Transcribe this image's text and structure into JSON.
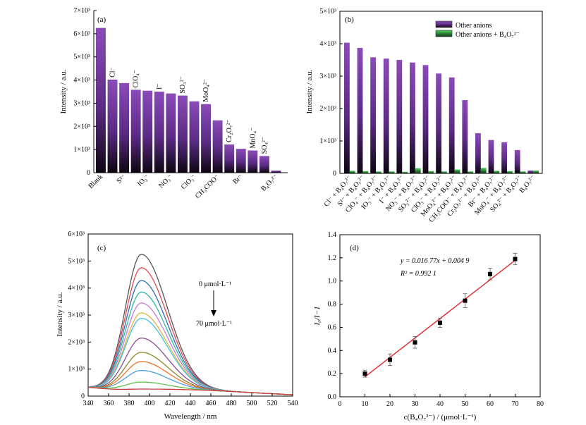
{
  "chart_data": [
    {
      "panel": "(a)",
      "type": "bar",
      "ylabel": "Intensity / a.u.",
      "ylim": [
        0,
        7000
      ],
      "yticks": [
        0,
        1000,
        2000,
        3000,
        4000,
        5000,
        6000,
        7000
      ],
      "ytick_labels": [
        "0",
        "1×10³",
        "2×10³",
        "3×10³",
        "4×10³",
        "5×10³",
        "6×10³",
        "7×10³"
      ],
      "bar_color": "#7b3fa6",
      "categories": [
        "Blank",
        "Cl⁻",
        "S²⁻",
        "ClO₄⁻",
        "IO₃⁻",
        "I⁻",
        "NO₃⁻",
        "SO₃²⁻",
        "ClO₃⁻",
        "MoO₄²⁻",
        "CH₃COO⁻",
        "Cr₂O₇²⁻",
        "Br⁻",
        "MnO₄⁻",
        "SO₄²⁻",
        "B₄O₇²⁻"
      ],
      "values": [
        6250,
        4020,
        3870,
        3580,
        3540,
        3500,
        3420,
        3330,
        3080,
        2960,
        2260,
        1220,
        1030,
        960,
        720,
        90
      ],
      "bottom_labels": [
        "Blank",
        "S²⁻",
        "IO₃⁻",
        "NO₃⁻",
        "ClO₃⁻",
        "CH₃COO⁻",
        "Br⁻",
        "B₄O₇²⁻"
      ],
      "top_labels": [
        "Cl⁻",
        "ClO₄⁻",
        "I⁻",
        "SO₃²⁻",
        "MoO₄²⁻",
        "Cr₂O₇²⁻",
        "MnO₄⁻",
        "SO₄²⁻"
      ]
    },
    {
      "panel": "(b)",
      "type": "bar",
      "ylabel": "Intensity / a.u.",
      "ylim": [
        0,
        5000
      ],
      "yticks": [
        0,
        1000,
        2000,
        3000,
        4000,
        5000
      ],
      "ytick_labels": [
        "0",
        "1×10³",
        "2×10³",
        "3×10³",
        "4×10³",
        "5×10³"
      ],
      "legend": "top-right",
      "categories": [
        "Cl⁻ + B₄O₇²⁻",
        "S²⁻ + B₄O₇²⁻",
        "ClO₄⁻ + B₄O₇²⁻",
        "IO₃⁻ + B₄O₇²⁻",
        "I⁻ + B₄O₇²⁻",
        "NO₃⁻ + B₄O₇²⁻",
        "SO₃²⁻ + B₄O₇²⁻",
        "ClO₃⁻ + B₄O₇²⁻",
        "MoO₄²⁻ + B₄O₇²⁻",
        "CH₃COO⁻ + B₄O₇²⁻",
        "Cr₂O₇²⁻ + B₄O₇²⁻",
        "Br⁻ + B₄O₇²⁻",
        "MnO₄⁻ + B₄O₇²⁻",
        "SO₄²⁻ + B₄O₇²⁻",
        "B₄O₇²⁻"
      ],
      "series": [
        {
          "name": "Other anions",
          "color": "#7b3fa6",
          "values": [
            4030,
            3870,
            3580,
            3540,
            3500,
            3420,
            3340,
            3080,
            2960,
            2260,
            1240,
            1030,
            960,
            720,
            90
          ]
        },
        {
          "name": "Other anions + B₄O₇²⁻",
          "color": "#2eaa3c",
          "values": [
            80,
            70,
            60,
            60,
            50,
            160,
            70,
            60,
            120,
            60,
            170,
            80,
            70,
            60,
            90
          ]
        }
      ]
    },
    {
      "panel": "(c)",
      "type": "line",
      "xlabel": "Wavelength / nm",
      "ylabel": "Intensity / a.u.",
      "xlim": [
        340,
        540
      ],
      "ylim": [
        0,
        6000
      ],
      "xticks": [
        340,
        360,
        380,
        400,
        420,
        440,
        460,
        480,
        500,
        520,
        540
      ],
      "yticks": [
        0,
        1000,
        2000,
        3000,
        4000,
        5000,
        6000
      ],
      "ytick_labels": [
        "0",
        "1×10³",
        "2×10³",
        "3×10³",
        "4×10³",
        "5×10³",
        "6×10³"
      ],
      "peak_wavelength": 392,
      "start_intensity": 430,
      "end_intensity": 50,
      "annotation_top": "0 μmol·L⁻¹",
      "annotation_bottom": "70 μmol·L⁻¹",
      "series": [
        {
          "peak": 5250,
          "color": "#55555a"
        },
        {
          "peak": 4750,
          "color": "#e34848"
        },
        {
          "peak": 4280,
          "color": "#2f6cb2"
        },
        {
          "peak": 3850,
          "color": "#2dbb9b"
        },
        {
          "peak": 3450,
          "color": "#c57bd9"
        },
        {
          "peak": 3080,
          "color": "#e2b53a"
        },
        {
          "peak": 2880,
          "color": "#3ec1d8"
        },
        {
          "peak": 2150,
          "color": "#8c4a8c"
        },
        {
          "peak": 1620,
          "color": "#8a8a28"
        },
        {
          "peak": 1280,
          "color": "#f0702e"
        },
        {
          "peak": 950,
          "color": "#4a9ee0"
        },
        {
          "peak": 520,
          "color": "#5fc14a"
        },
        {
          "peak": 260,
          "color": "#d23a3a"
        }
      ]
    },
    {
      "panel": "(d)",
      "type": "scatter",
      "xlabel": "c(B₄O₇²⁻) / (μmol·L⁻¹)",
      "ylabel": "I₀/I−1",
      "xlim": [
        0,
        80
      ],
      "ylim": [
        0,
        1.4
      ],
      "xticks": [
        0,
        10,
        20,
        30,
        40,
        50,
        60,
        70,
        80
      ],
      "yticks": [
        0.0,
        0.2,
        0.4,
        0.6,
        0.8,
        1.0,
        1.2,
        1.4
      ],
      "ytick_labels": [
        "0.0",
        "0.2",
        "0.4",
        "0.6",
        "0.8",
        "1.0",
        "1.2",
        "1.4"
      ],
      "x": [
        10,
        20,
        30,
        40,
        50,
        60,
        70
      ],
      "y": [
        0.2,
        0.32,
        0.47,
        0.64,
        0.83,
        1.06,
        1.19
      ],
      "yerr": [
        0.03,
        0.05,
        0.05,
        0.04,
        0.06,
        0.05,
        0.05
      ],
      "fit": {
        "slope": 0.01677,
        "intercept": 0.0049,
        "color": "#e0282c"
      },
      "equation": "y = 0.016 77x + 0.004 9",
      "r2": "R² = 0.992 1"
    }
  ]
}
